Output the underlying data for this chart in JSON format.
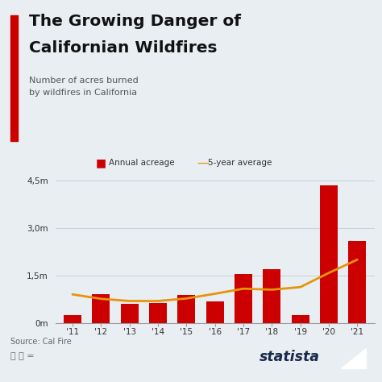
{
  "years": [
    "'11",
    "'12",
    "'13",
    "'14",
    "'15",
    "'16",
    "'17",
    "'18",
    "'19",
    "'20",
    "'21"
  ],
  "annual_acreage": [
    250000,
    900000,
    600000,
    625000,
    880000,
    670000,
    1540000,
    1700000,
    253000,
    4350000,
    2580000
  ],
  "five_year_avg": [
    900000,
    760000,
    690000,
    690000,
    770000,
    920000,
    1080000,
    1050000,
    1130000,
    1580000,
    2000000
  ],
  "bar_color": "#CC0000",
  "line_color": "#E8940A",
  "bg_color": "#E8EEF2",
  "chart_bg": "#E8EEF2",
  "title_line1": "The Growing Danger of",
  "title_line2": "Californian Wildfires",
  "subtitle": "Number of acres burned\nby wildfires in California",
  "source": "Source: Cal Fire",
  "legend_bar": "Annual acreage",
  "legend_line": "5-year average",
  "yticks": [
    0,
    1500000,
    3000000,
    4500000
  ],
  "ytick_labels": [
    "0m",
    "1,5m",
    "3,0m",
    "4,5m"
  ],
  "ylim": [
    0,
    4900000
  ],
  "grid_color": "#C8D4DA",
  "title_color": "#111111",
  "subtitle_color": "#555555",
  "accent_color": "#CC0000",
  "statista_color": "#1B2A4A"
}
